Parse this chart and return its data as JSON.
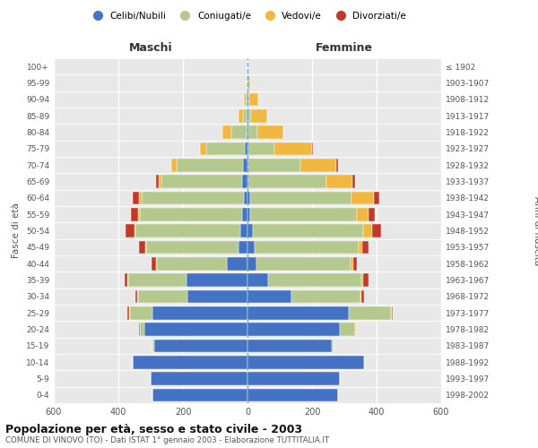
{
  "age_groups": [
    "0-4",
    "5-9",
    "10-14",
    "15-19",
    "20-24",
    "25-29",
    "30-34",
    "35-39",
    "40-44",
    "45-49",
    "50-54",
    "55-59",
    "60-64",
    "65-69",
    "70-74",
    "75-79",
    "80-84",
    "85-89",
    "90-94",
    "95-99",
    "100+"
  ],
  "birth_years": [
    "1998-2002",
    "1993-1997",
    "1988-1992",
    "1983-1987",
    "1978-1982",
    "1973-1977",
    "1968-1972",
    "1963-1967",
    "1958-1962",
    "1953-1957",
    "1948-1952",
    "1943-1947",
    "1938-1942",
    "1933-1937",
    "1928-1932",
    "1923-1927",
    "1918-1922",
    "1913-1917",
    "1908-1912",
    "1903-1907",
    "≤ 1902"
  ],
  "maschi": {
    "celibi": [
      295,
      300,
      355,
      290,
      320,
      295,
      185,
      190,
      65,
      28,
      22,
      18,
      12,
      18,
      15,
      8,
      4,
      2,
      1,
      0,
      0
    ],
    "coniugati": [
      0,
      0,
      0,
      4,
      12,
      70,
      155,
      180,
      215,
      285,
      325,
      315,
      315,
      250,
      205,
      120,
      45,
      12,
      5,
      1,
      0
    ],
    "vedovi": [
      0,
      0,
      0,
      0,
      2,
      2,
      2,
      3,
      4,
      4,
      4,
      5,
      8,
      8,
      15,
      20,
      28,
      15,
      5,
      1,
      0
    ],
    "divorziati": [
      0,
      0,
      0,
      0,
      2,
      4,
      4,
      8,
      12,
      18,
      28,
      22,
      20,
      8,
      2,
      0,
      0,
      0,
      0,
      0,
      0
    ]
  },
  "femmine": {
    "nubili": [
      280,
      285,
      360,
      260,
      285,
      315,
      135,
      65,
      28,
      22,
      18,
      8,
      8,
      4,
      4,
      4,
      2,
      2,
      2,
      0,
      0
    ],
    "coniugate": [
      0,
      0,
      4,
      8,
      48,
      130,
      215,
      288,
      292,
      322,
      340,
      330,
      315,
      240,
      160,
      78,
      28,
      8,
      4,
      2,
      0
    ],
    "vedove": [
      0,
      0,
      0,
      0,
      2,
      2,
      4,
      4,
      8,
      12,
      28,
      38,
      68,
      82,
      112,
      118,
      82,
      52,
      28,
      5,
      0
    ],
    "divorziate": [
      0,
      0,
      0,
      0,
      2,
      4,
      8,
      18,
      12,
      18,
      28,
      18,
      18,
      8,
      4,
      2,
      0,
      0,
      0,
      0,
      0
    ]
  },
  "colors": {
    "celibi": "#4472c4",
    "coniugati": "#b5c98e",
    "vedovi": "#f0b840",
    "divorziati": "#c0392b"
  },
  "title": "Popolazione per età, sesso e stato civile - 2003",
  "subtitle": "COMUNE DI VINOVO (TO) - Dati ISTAT 1° gennaio 2003 - Elaborazione TUTTITALIA.IT",
  "xlabel_left": "Maschi",
  "xlabel_right": "Femmine",
  "ylabel_left": "Fasce di età",
  "ylabel_right": "Anni di nascita",
  "xlim": 600,
  "bg_color": "#ffffff",
  "plot_bg_color": "#e8e8e8",
  "grid_color": "#ffffff",
  "legend_labels": [
    "Celibi/Nubili",
    "Coniugati/e",
    "Vedovi/e",
    "Divorziati/e"
  ]
}
